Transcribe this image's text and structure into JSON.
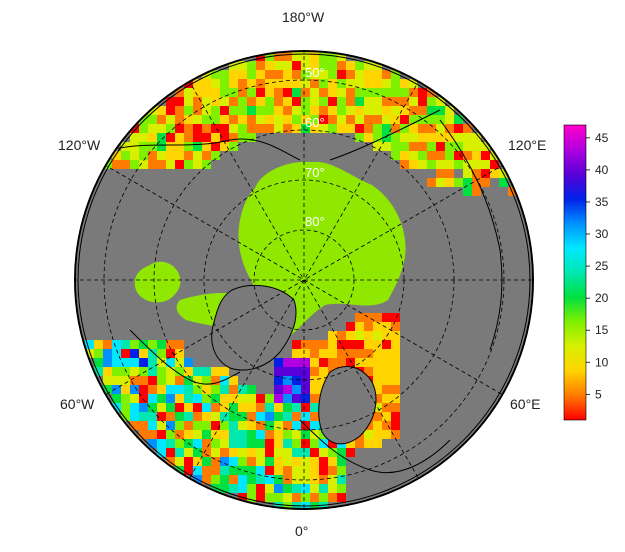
{
  "map": {
    "projection": "north-polar-stereographic",
    "longitude_labels": {
      "top": "180°W",
      "left_upper": "120°W",
      "right_upper": "120°E",
      "left_lower": "60°W",
      "right_lower": "60°E",
      "bottom": "0°"
    },
    "latitude_labels": [
      "50°",
      "60°",
      "70°",
      "80°"
    ],
    "colors": {
      "land": "#7a7a7a",
      "coastline": "#000000",
      "frame": "#000000",
      "graticule": "#000000",
      "ice_plateau": "#90e800"
    }
  },
  "colorbar": {
    "ticks": [
      "45",
      "40",
      "35",
      "30",
      "25",
      "20",
      "15",
      "10",
      "5"
    ],
    "min": 1,
    "max": 47,
    "stops": [
      "#ff0000",
      "#ff7a00",
      "#ffd400",
      "#d8f000",
      "#7ef000",
      "#00e040",
      "#00e8b0",
      "#00e8ff",
      "#0090ff",
      "#0020e8",
      "#5a00d8",
      "#b000e0",
      "#ff00c8"
    ]
  }
}
